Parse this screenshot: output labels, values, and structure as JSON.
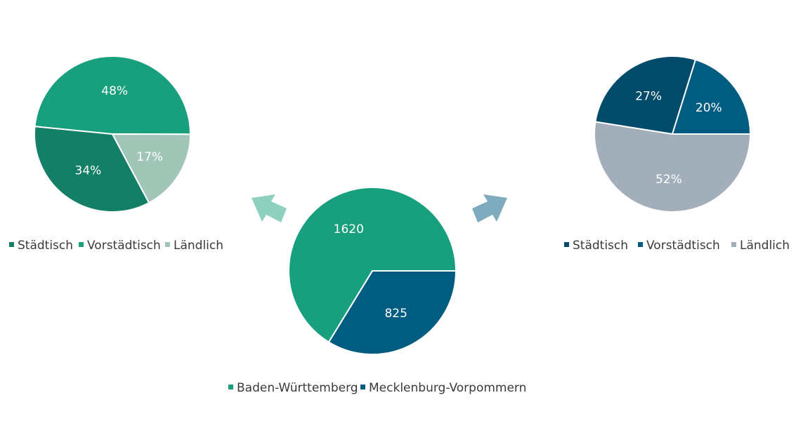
{
  "colors": {
    "teal_dark": "#147f67",
    "teal": "#189f7d",
    "teal_light": "#a1c6b8",
    "navy_dark": "#004a6a",
    "navy": "#005c80",
    "grey_blue": "#a2afba",
    "arrow_left": "#8fd0bf",
    "arrow_right": "#7fabbe"
  },
  "chart_data": [
    {
      "type": "pie",
      "categories": [
        "Städtisch",
        "Vorstädtisch",
        "Ländlich"
      ],
      "values": [
        34,
        48,
        17
      ],
      "data_labels": [
        "34%",
        "48%",
        "17%"
      ],
      "colors": [
        "#147f67",
        "#189f7d",
        "#a1c6b8"
      ],
      "legend": "bottom"
    },
    {
      "type": "pie",
      "categories": [
        "Baden-Württemberg",
        "Mecklenburg-Vorpommern"
      ],
      "values": [
        1620,
        825
      ],
      "data_labels": [
        "1620",
        "825"
      ],
      "colors": [
        "#189f7d",
        "#005c80"
      ],
      "legend": "bottom"
    },
    {
      "type": "pie",
      "categories": [
        "Städtisch",
        "Vorstädtisch",
        "Ländlich"
      ],
      "values": [
        27,
        20,
        52
      ],
      "data_labels": [
        "27%",
        "20%",
        "52%"
      ],
      "colors": [
        "#004a6a",
        "#005c80",
        "#a2afba"
      ],
      "legend": "bottom"
    }
  ]
}
